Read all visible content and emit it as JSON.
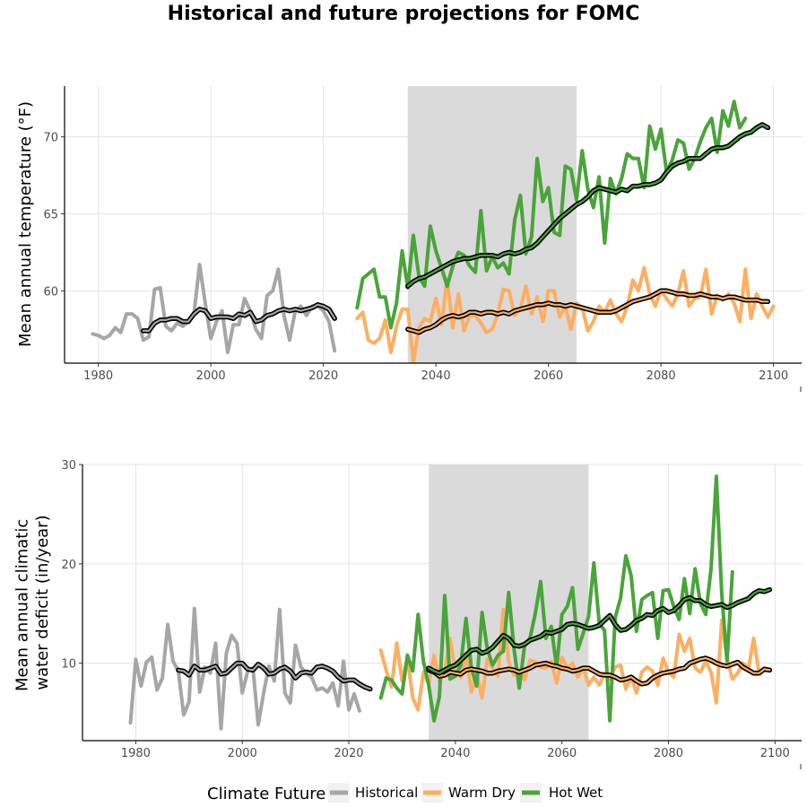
{
  "title": "Historical and future projections for FOMC",
  "colors": {
    "historical": "#a6a6a6",
    "warm_dry": "#fdae61",
    "hot_wet": "#4aa43a",
    "smooth": "#000000",
    "shade": "#dadada",
    "grid": "#e3e3e3"
  },
  "legend": {
    "title": "Climate Future",
    "items": [
      {
        "key": "historical",
        "label": "Historical"
      },
      {
        "key": "warm_dry",
        "label": "Warm Dry"
      },
      {
        "key": "hot_wet",
        "label": "Hot Wet"
      }
    ]
  },
  "chart_data": [
    {
      "type": "line",
      "ylabel": "Mean annual temperature (°F)",
      "xlim": [
        1974,
        2105
      ],
      "ylim": [
        55.3,
        73.3
      ],
      "xticks": [
        1980,
        2000,
        2020,
        2040,
        2060,
        2080,
        2100
      ],
      "yticks": [
        60,
        65,
        70
      ],
      "shaded_x": [
        2035,
        2065
      ],
      "series": [
        {
          "name": "Historical",
          "key": "historical",
          "x_start": 1979,
          "values": [
            57.2,
            57.1,
            56.9,
            57.1,
            57.6,
            57.3,
            58.5,
            58.5,
            58.2,
            56.8,
            57.0,
            60.1,
            60.2,
            57.7,
            57.4,
            57.9,
            57.7,
            58.0,
            58.5,
            61.7,
            59.2,
            56.9,
            58.0,
            58.7,
            56.0,
            57.8,
            57.8,
            59.5,
            58.7,
            57.5,
            56.9,
            59.7,
            60.0,
            61.4,
            58.4,
            56.8,
            58.7,
            59.0,
            58.4,
            59.0,
            59.0,
            58.7,
            58.0,
            56.1
          ]
        },
        {
          "name": "Warm Dry",
          "key": "warm_dry",
          "x_start": 2026,
          "values": [
            58.2,
            58.6,
            56.8,
            56.6,
            56.9,
            58.1,
            56.0,
            57.7,
            58.8,
            58.8,
            55.4,
            57.6,
            58.2,
            58.0,
            59.5,
            57.8,
            60.8,
            57.6,
            59.8,
            57.4,
            58.4,
            58.4,
            57.9,
            57.3,
            57.5,
            58.5,
            60.1,
            60.0,
            58.4,
            58.8,
            60.3,
            58.5,
            59.6,
            58.0,
            60.0,
            60.0,
            58.3,
            59.0,
            57.5,
            59.2,
            58.9,
            57.4,
            58.0,
            59.0,
            58.6,
            59.4,
            58.5,
            58.0,
            59.0,
            60.7,
            60.0,
            61.5,
            59.8,
            59.0,
            60.0,
            59.5,
            59.0,
            59.8,
            61.3,
            59.0,
            59.5,
            59.6,
            61.4,
            58.5,
            59.7,
            59.4,
            59.8,
            59.2,
            58.0,
            61.4,
            58.2,
            59.8,
            59.0,
            58.3,
            59.0
          ]
        },
        {
          "name": "Hot Wet",
          "key": "hot_wet",
          "x_start": 2026,
          "values": [
            58.9,
            60.8,
            61.1,
            61.4,
            59.6,
            59.6,
            57.6,
            59.2,
            62.6,
            60.2,
            63.6,
            60.9,
            60.3,
            64.2,
            62.6,
            61.5,
            60.3,
            61.6,
            62.5,
            62.3,
            61.6,
            61.2,
            65.2,
            61.3,
            62.2,
            61.5,
            61.8,
            61.1,
            64.6,
            66.2,
            62.4,
            63.5,
            68.6,
            65.8,
            66.7,
            63.8,
            63.6,
            68.1,
            67.9,
            65.9,
            69.1,
            66.6,
            65.4,
            67.4,
            63.1,
            67.3,
            66.3,
            67.3,
            68.9,
            68.6,
            68.6,
            66.7,
            70.7,
            69.2,
            70.5,
            67.7,
            68.5,
            69.8,
            69.6,
            67.9,
            68.6,
            69.7,
            70.6,
            71.2,
            69.0,
            71.7,
            70.7,
            72.3,
            70.6,
            71.2
          ]
        },
        {
          "name": "Warm Dry smooth",
          "key": "warm_dry",
          "smooth": true,
          "x_start": 2035,
          "values": [
            57.5,
            57.4,
            57.3,
            57.5,
            57.6,
            57.8,
            58.1,
            58.3,
            58.4,
            58.3,
            58.4,
            58.6,
            58.6,
            58.5,
            58.6,
            58.6,
            58.5,
            58.6,
            58.5,
            58.7,
            58.8,
            58.9,
            59.0,
            59.1,
            59.1,
            59.2,
            59.1,
            59.1,
            59.0,
            59.1,
            59.0,
            58.9,
            58.8,
            58.7,
            58.6,
            58.6,
            58.6,
            58.7,
            58.9,
            59.1,
            59.3,
            59.4,
            59.5,
            59.6,
            59.8,
            60.0,
            60.0,
            59.9,
            59.8,
            59.8,
            59.7,
            59.7,
            59.8,
            59.7,
            59.6,
            59.6,
            59.5,
            59.6,
            59.6,
            59.5,
            59.4,
            59.4,
            59.4,
            59.3,
            59.3
          ]
        },
        {
          "name": "Hot Wet smooth",
          "key": "hot_wet",
          "smooth": true,
          "x_start": 2035,
          "values": [
            60.3,
            60.6,
            60.8,
            60.9,
            61.1,
            61.3,
            61.5,
            61.7,
            61.9,
            62.0,
            62.1,
            62.1,
            62.2,
            62.3,
            62.3,
            62.3,
            62.2,
            62.4,
            62.5,
            62.4,
            62.5,
            62.7,
            62.8,
            63.1,
            63.5,
            63.9,
            64.3,
            64.7,
            65.0,
            65.3,
            65.6,
            65.8,
            66.1,
            66.5,
            66.7,
            66.6,
            66.5,
            66.4,
            66.6,
            66.5,
            66.8,
            66.8,
            66.9,
            66.9,
            67.0,
            67.2,
            67.7,
            68.1,
            68.3,
            68.4,
            68.6,
            68.6,
            68.6,
            68.9,
            69.2,
            69.3,
            69.3,
            69.4,
            69.7,
            70.0,
            70.2,
            70.3,
            70.6,
            70.8,
            70.6
          ]
        },
        {
          "name": "Historical smooth",
          "key": "historical",
          "smooth": true,
          "x_start": 1988,
          "values": [
            57.4,
            57.4,
            57.9,
            58.1,
            58.1,
            58.2,
            58.2,
            58.0,
            58.0,
            58.5,
            58.8,
            58.7,
            58.2,
            58.3,
            58.3,
            58.3,
            58.2,
            58.5,
            58.4,
            58.6,
            58.0,
            58.1,
            58.4,
            58.5,
            58.7,
            58.8,
            58.7,
            58.8,
            58.7,
            58.8,
            58.9,
            59.1,
            59.0,
            58.8,
            58.2
          ]
        }
      ]
    },
    {
      "type": "line",
      "ylabel": "Mean annual climatic water deficit (in/year)",
      "ylabel_lines": [
        "Mean annual climatic",
        "water deficit (in/year)"
      ],
      "xlim": [
        1970,
        2105
      ],
      "ylim": [
        2.2,
        30
      ],
      "xticks": [
        1980,
        2000,
        2020,
        2040,
        2060,
        2080,
        2100
      ],
      "yticks": [
        10,
        20,
        30
      ],
      "shaded_x": [
        2035,
        2065
      ],
      "series": [
        {
          "name": "Historical",
          "key": "historical",
          "x_start": 1979,
          "values": [
            4.0,
            10.4,
            7.7,
            10.1,
            10.6,
            7.3,
            8.5,
            13.9,
            10.2,
            9.2,
            4.8,
            6.1,
            15.5,
            7.1,
            9.6,
            9.0,
            12.0,
            3.4,
            11.0,
            12.8,
            12.0,
            7.0,
            9.2,
            9.5,
            3.8,
            7.0,
            9.7,
            8.2,
            15.4,
            7.0,
            6.0,
            11.8,
            9.6,
            9.0,
            8.6,
            7.3,
            7.5,
            7.1,
            8.0,
            5.7,
            10.2,
            5.3,
            6.9,
            5.2
          ]
        },
        {
          "name": "Warm Dry",
          "key": "warm_dry",
          "x_start": 2026,
          "values": [
            11.3,
            9.3,
            7.6,
            12.0,
            8.2,
            10.5,
            6.5,
            5.3,
            9.1,
            7.9,
            10.8,
            8.2,
            9.0,
            12.5,
            9.2,
            8.6,
            10.9,
            7.1,
            9.0,
            6.5,
            10.4,
            9.5,
            8.7,
            15.4,
            10.2,
            8.8,
            9.3,
            8.3,
            10.3,
            10.1,
            9.6,
            9.5,
            10.2,
            8.0,
            10.6,
            9.5,
            10.0,
            8.6,
            9.6,
            7.8,
            8.6,
            7.8,
            9.0,
            8.4,
            9.6,
            9.8,
            7.4,
            8.6,
            7.0,
            9.1,
            9.6,
            9.2,
            7.8,
            10.5,
            9.1,
            8.6,
            12.9,
            11.2,
            12.5,
            9.5,
            9.1,
            10.2,
            9.1,
            6.0,
            14.3,
            10.5,
            8.4,
            9.0,
            10.0,
            9.4,
            12.5,
            9.0
          ]
        },
        {
          "name": "Hot Wet",
          "key": "hot_wet",
          "x_start": 2026,
          "values": [
            6.5,
            8.5,
            8.3,
            7.5,
            6.9,
            10.8,
            9.2,
            14.9,
            10.2,
            7.8,
            4.2,
            6.6,
            16.8,
            8.4,
            8.7,
            9.8,
            14.5,
            9.5,
            7.7,
            15.1,
            11.4,
            9.8,
            10.8,
            11.2,
            17.1,
            11.5,
            7.5,
            11.8,
            12.5,
            15.0,
            18.2,
            12.5,
            13.7,
            9.6,
            14.9,
            15.7,
            17.6,
            11.4,
            13.0,
            14.7,
            20.1,
            14.0,
            13.3,
            4.2,
            14.6,
            16.5,
            20.8,
            18.8,
            13.2,
            16.4,
            16.8,
            17.1,
            12.5,
            17.3,
            17.4,
            15.7,
            14.4,
            18.5,
            15.0,
            19.5,
            16.0,
            14.9,
            19.5,
            28.8,
            17.0,
            10.2,
            19.2
          ]
        },
        {
          "name": "Warm Dry smooth",
          "key": "warm_dry",
          "smooth": true,
          "x_start": 2035,
          "values": [
            9.3,
            9.1,
            8.7,
            8.8,
            9.1,
            9.0,
            8.9,
            9.3,
            9.4,
            9.3,
            9.2,
            9.0,
            9.0,
            9.2,
            9.3,
            9.4,
            9.3,
            9.1,
            9.3,
            9.5,
            9.8,
            9.9,
            10.0,
            9.8,
            9.7,
            9.5,
            9.4,
            9.2,
            9.3,
            9.5,
            9.5,
            9.2,
            8.9,
            8.8,
            8.8,
            8.6,
            8.3,
            8.4,
            8.6,
            8.2,
            7.9,
            8.0,
            8.5,
            8.8,
            9.0,
            9.1,
            9.2,
            9.4,
            9.5,
            10.0,
            10.2,
            10.4,
            10.5,
            10.3,
            10.0,
            9.8,
            9.7,
            9.9,
            10.1,
            9.6,
            9.3,
            9.0,
            9.0,
            9.4,
            9.3
          ]
        },
        {
          "name": "Hot Wet smooth",
          "key": "hot_wet",
          "smooth": true,
          "x_start": 2035,
          "values": [
            9.5,
            9.2,
            9.0,
            9.3,
            9.6,
            9.8,
            10.3,
            10.8,
            11.3,
            11.4,
            11.0,
            11.2,
            11.6,
            12.2,
            12.8,
            12.5,
            11.8,
            11.7,
            11.9,
            12.3,
            12.5,
            12.7,
            13.1,
            13.0,
            13.2,
            13.4,
            13.9,
            14.0,
            13.9,
            13.7,
            13.5,
            13.6,
            13.8,
            14.3,
            14.8,
            13.9,
            13.3,
            13.4,
            13.8,
            14.3,
            14.5,
            14.9,
            14.8,
            15.3,
            15.5,
            15.1,
            15.3,
            15.8,
            16.4,
            16.6,
            16.3,
            16.3,
            15.9,
            15.7,
            15.8,
            15.9,
            15.6,
            15.8,
            16.1,
            16.3,
            16.5,
            17.0,
            17.3,
            17.2,
            17.4
          ]
        },
        {
          "name": "Historical smooth",
          "key": "historical",
          "smooth": true,
          "x_start": 1988,
          "values": [
            9.3,
            9.2,
            8.8,
            9.7,
            9.3,
            9.3,
            9.5,
            9.7,
            8.9,
            9.0,
            9.5,
            10.0,
            10.0,
            9.4,
            9.3,
            9.9,
            9.5,
            8.9,
            9.0,
            9.4,
            9.6,
            9.2,
            8.5,
            9.0,
            9.1,
            9.0,
            9.6,
            9.7,
            9.5,
            9.2,
            8.6,
            8.2,
            8.3,
            8.3,
            7.9,
            7.6,
            7.4
          ]
        }
      ]
    }
  ]
}
